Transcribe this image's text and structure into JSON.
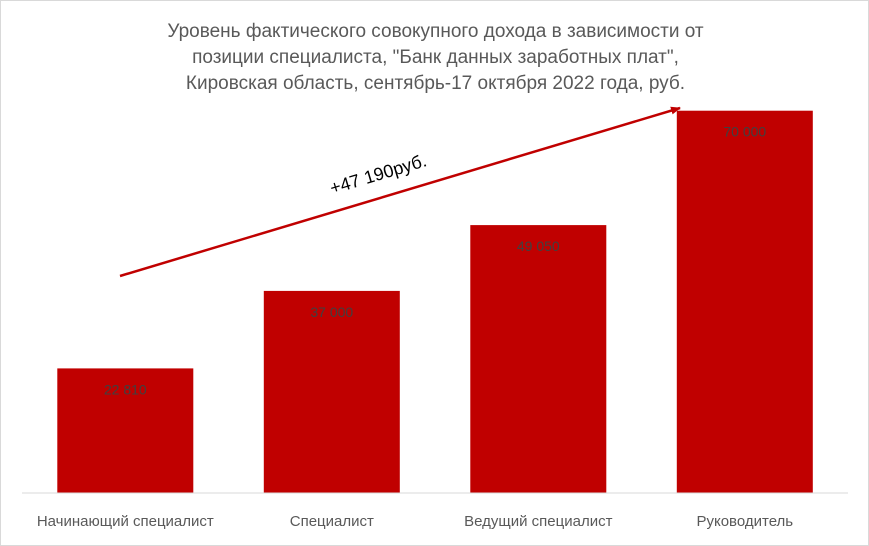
{
  "chart_data": {
    "type": "bar",
    "title_lines": [
      "Уровень фактического совокупного дохода в зависимости от",
      "позиции специалиста, \"Банк данных заработных плат\",",
      "Кировская область, сентябрь-17 октября 2022 года, руб."
    ],
    "categories": [
      "Начинающий специалист",
      "Специалист",
      "Ведущий специалист",
      "Руководитель"
    ],
    "values": [
      22810,
      37000,
      49050,
      70000
    ],
    "value_labels": [
      "22 810",
      "37 000",
      "49 050",
      "70 000"
    ],
    "annotation": "+47 190руб.",
    "ylim": [
      0,
      78000
    ],
    "bar_color": "#c00000",
    "arrow_color": "#c00000",
    "grid": false,
    "legend": "none"
  }
}
